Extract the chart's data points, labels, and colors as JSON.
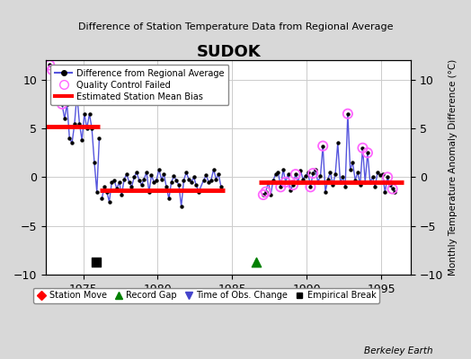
{
  "title": "SUDOK",
  "subtitle": "Difference of Station Temperature Data from Regional Average",
  "ylabel_right": "Monthly Temperature Anomaly Difference (°C)",
  "ylim": [
    -10,
    12
  ],
  "xlim": [
    1972.5,
    1997.0
  ],
  "yticks": [
    -10,
    -5,
    0,
    5,
    10
  ],
  "xticks": [
    1975,
    1980,
    1985,
    1990,
    1995
  ],
  "background_color": "#d8d8d8",
  "plot_bg_color": "#ffffff",
  "credit": "Berkeley Earth",
  "segment1_bias": 5.2,
  "segment1_start": 1972.5,
  "segment1_end": 1976.1,
  "segment2_bias": -1.35,
  "segment2_start": 1976.1,
  "segment2_end": 1984.5,
  "segment3_bias": -0.55,
  "segment3_start": 1986.8,
  "segment3_end": 1996.5,
  "empirical_break_x": 1975.9,
  "empirical_break_y": -8.7,
  "record_gap_x": 1986.6,
  "record_gap_y": -8.7,
  "blue_line_color": "#5555dd",
  "bias_line_color": "#ff0000",
  "qc_fail_color": "#ff66ff",
  "dot_color": "#000000",
  "seg1_data": [
    [
      1972.75,
      11.5
    ],
    [
      1972.917,
      11.0
    ],
    [
      1973.08,
      8.5
    ],
    [
      1973.25,
      9.5
    ],
    [
      1973.42,
      10.5
    ],
    [
      1973.58,
      7.5
    ],
    [
      1973.75,
      6.0
    ],
    [
      1973.917,
      7.5
    ],
    [
      1974.08,
      4.0
    ],
    [
      1974.25,
      3.5
    ],
    [
      1974.42,
      5.5
    ],
    [
      1974.58,
      8.5
    ],
    [
      1974.75,
      5.5
    ],
    [
      1974.917,
      3.8
    ],
    [
      1975.08,
      6.5
    ],
    [
      1975.25,
      5.0
    ],
    [
      1975.42,
      6.5
    ],
    [
      1975.58,
      5.0
    ],
    [
      1975.75,
      1.5
    ],
    [
      1975.917,
      -1.5
    ],
    [
      1976.08,
      4.0
    ]
  ],
  "seg1_qc": [
    [
      1972.75,
      11.5
    ],
    [
      1972.917,
      11.0
    ],
    [
      1973.42,
      10.5
    ],
    [
      1973.58,
      7.5
    ]
  ],
  "seg2_data": [
    [
      1976.25,
      -2.2
    ],
    [
      1976.42,
      -1.0
    ],
    [
      1976.58,
      -1.5
    ],
    [
      1976.75,
      -2.5
    ],
    [
      1976.917,
      -0.5
    ],
    [
      1977.08,
      -0.3
    ],
    [
      1977.25,
      -1.2
    ],
    [
      1977.42,
      -0.5
    ],
    [
      1977.58,
      -1.8
    ],
    [
      1977.75,
      -0.2
    ],
    [
      1977.917,
      0.3
    ],
    [
      1978.08,
      -0.5
    ],
    [
      1978.25,
      -1.0
    ],
    [
      1978.42,
      0.0
    ],
    [
      1978.58,
      0.5
    ],
    [
      1978.75,
      -0.3
    ],
    [
      1978.917,
      -0.8
    ],
    [
      1979.08,
      -0.2
    ],
    [
      1979.25,
      0.5
    ],
    [
      1979.42,
      -1.5
    ],
    [
      1979.58,
      0.2
    ],
    [
      1979.75,
      -0.5
    ],
    [
      1979.917,
      -0.3
    ],
    [
      1980.08,
      0.8
    ],
    [
      1980.25,
      -0.2
    ],
    [
      1980.42,
      0.3
    ],
    [
      1980.58,
      -1.0
    ],
    [
      1980.75,
      -2.2
    ],
    [
      1980.917,
      -0.5
    ],
    [
      1981.08,
      0.1
    ],
    [
      1981.25,
      -0.3
    ],
    [
      1981.42,
      -0.8
    ],
    [
      1981.58,
      -3.0
    ],
    [
      1981.75,
      -0.3
    ],
    [
      1981.917,
      0.5
    ],
    [
      1982.08,
      -0.2
    ],
    [
      1982.25,
      -0.5
    ],
    [
      1982.42,
      0.0
    ],
    [
      1982.58,
      -0.8
    ],
    [
      1982.75,
      -1.5
    ],
    [
      1983.08,
      -0.3
    ],
    [
      1983.25,
      0.2
    ],
    [
      1983.42,
      -0.5
    ],
    [
      1983.58,
      -0.3
    ],
    [
      1983.75,
      0.8
    ],
    [
      1983.917,
      -0.2
    ],
    [
      1984.08,
      0.3
    ],
    [
      1984.25,
      -1.0
    ]
  ],
  "seg2_qc": [],
  "seg3_data": [
    [
      1987.08,
      -1.8
    ],
    [
      1987.25,
      -1.5
    ],
    [
      1987.42,
      -0.5
    ],
    [
      1987.58,
      -1.8
    ],
    [
      1987.75,
      -0.3
    ],
    [
      1987.917,
      0.3
    ],
    [
      1988.08,
      0.5
    ],
    [
      1988.25,
      -1.0
    ],
    [
      1988.42,
      0.8
    ],
    [
      1988.58,
      -0.5
    ],
    [
      1988.75,
      0.3
    ],
    [
      1988.917,
      -1.3
    ],
    [
      1989.08,
      -0.8
    ],
    [
      1989.25,
      0.3
    ],
    [
      1989.42,
      -0.5
    ],
    [
      1989.58,
      0.7
    ],
    [
      1989.75,
      -0.2
    ],
    [
      1989.917,
      0.1
    ],
    [
      1990.08,
      0.5
    ],
    [
      1990.25,
      -1.0
    ],
    [
      1990.42,
      0.4
    ],
    [
      1990.58,
      0.8
    ],
    [
      1990.75,
      -0.5
    ],
    [
      1990.917,
      0.1
    ],
    [
      1991.08,
      3.2
    ],
    [
      1991.25,
      -1.5
    ],
    [
      1991.42,
      -0.2
    ],
    [
      1991.58,
      0.5
    ],
    [
      1991.75,
      -0.8
    ],
    [
      1991.917,
      0.3
    ],
    [
      1992.08,
      3.5
    ],
    [
      1992.25,
      -0.5
    ],
    [
      1992.42,
      0.0
    ],
    [
      1992.58,
      -1.0
    ],
    [
      1992.75,
      6.5
    ],
    [
      1992.917,
      0.8
    ],
    [
      1993.08,
      1.5
    ],
    [
      1993.25,
      -0.3
    ],
    [
      1993.42,
      0.5
    ],
    [
      1993.58,
      -0.8
    ],
    [
      1993.75,
      3.0
    ],
    [
      1993.917,
      -0.5
    ],
    [
      1994.08,
      2.5
    ],
    [
      1994.25,
      -0.5
    ],
    [
      1994.42,
      0.0
    ],
    [
      1994.58,
      -1.0
    ],
    [
      1994.75,
      0.5
    ],
    [
      1994.917,
      0.2
    ],
    [
      1995.08,
      0.3
    ],
    [
      1995.25,
      -1.5
    ],
    [
      1995.42,
      0.0
    ],
    [
      1995.58,
      -0.8
    ],
    [
      1995.75,
      -1.2
    ],
    [
      1995.917,
      -1.5
    ]
  ],
  "seg3_qc": [
    [
      1987.08,
      -1.8
    ],
    [
      1987.25,
      -1.5
    ],
    [
      1988.25,
      -1.0
    ],
    [
      1988.58,
      -0.5
    ],
    [
      1989.08,
      -0.8
    ],
    [
      1989.25,
      0.3
    ],
    [
      1990.25,
      -1.0
    ],
    [
      1990.42,
      0.4
    ],
    [
      1991.08,
      3.2
    ],
    [
      1992.75,
      6.5
    ],
    [
      1993.75,
      3.0
    ],
    [
      1994.08,
      2.5
    ],
    [
      1995.42,
      0.0
    ],
    [
      1995.75,
      -1.2
    ]
  ]
}
